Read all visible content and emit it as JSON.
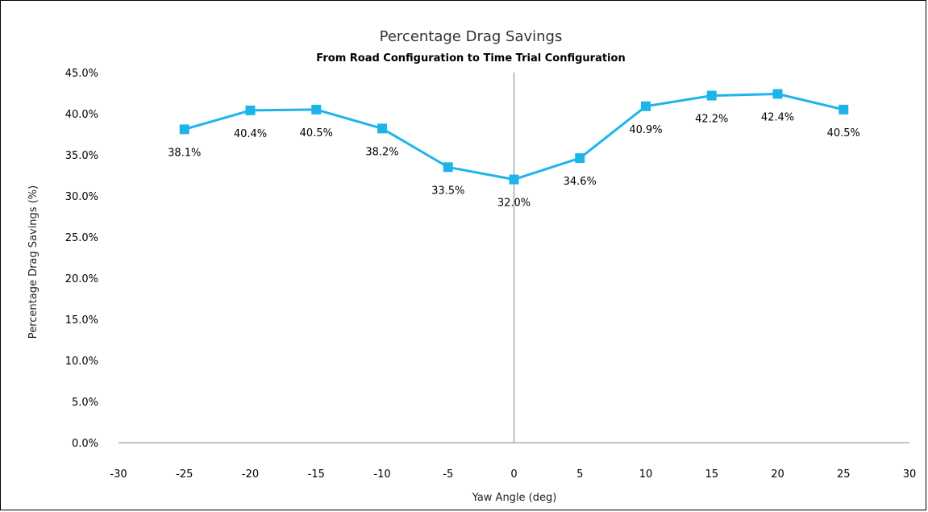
{
  "chart_data": {
    "type": "line",
    "title": "Percentage Drag Savings",
    "subtitle": "From Road Configuration to Time Trial Configuration",
    "xlabel": "Yaw Angle (deg)",
    "ylabel": "Percentage Drag Savings (%)",
    "xlim": [
      -30,
      30
    ],
    "ylim": [
      0,
      45
    ],
    "x_ticks": [
      "-30",
      "-25",
      "-20",
      "-15",
      "-10",
      "-5",
      "0",
      "5",
      "10",
      "15",
      "20",
      "25",
      "30"
    ],
    "x_tick_values": [
      -30,
      -25,
      -20,
      -15,
      -10,
      -5,
      0,
      5,
      10,
      15,
      20,
      25,
      30
    ],
    "y_ticks": [
      "0.0%",
      "5.0%",
      "10.0%",
      "15.0%",
      "20.0%",
      "25.0%",
      "30.0%",
      "35.0%",
      "40.0%",
      "45.0%"
    ],
    "y_tick_values": [
      0,
      5,
      10,
      15,
      20,
      25,
      30,
      35,
      40,
      45
    ],
    "grid": false,
    "series": [
      {
        "color": "#1fb4e9",
        "marker": "square",
        "x": [
          -25,
          -20,
          -15,
          -10,
          -5,
          0,
          5,
          10,
          15,
          20,
          25
        ],
        "y": [
          38.1,
          40.4,
          40.5,
          38.2,
          33.5,
          32.0,
          34.6,
          40.9,
          42.2,
          42.4,
          40.5
        ],
        "labels": [
          "38.1%",
          "40.4%",
          "40.5%",
          "38.2%",
          "33.5%",
          "32.0%",
          "34.6%",
          "40.9%",
          "42.2%",
          "42.4%",
          "40.5%"
        ]
      }
    ]
  }
}
